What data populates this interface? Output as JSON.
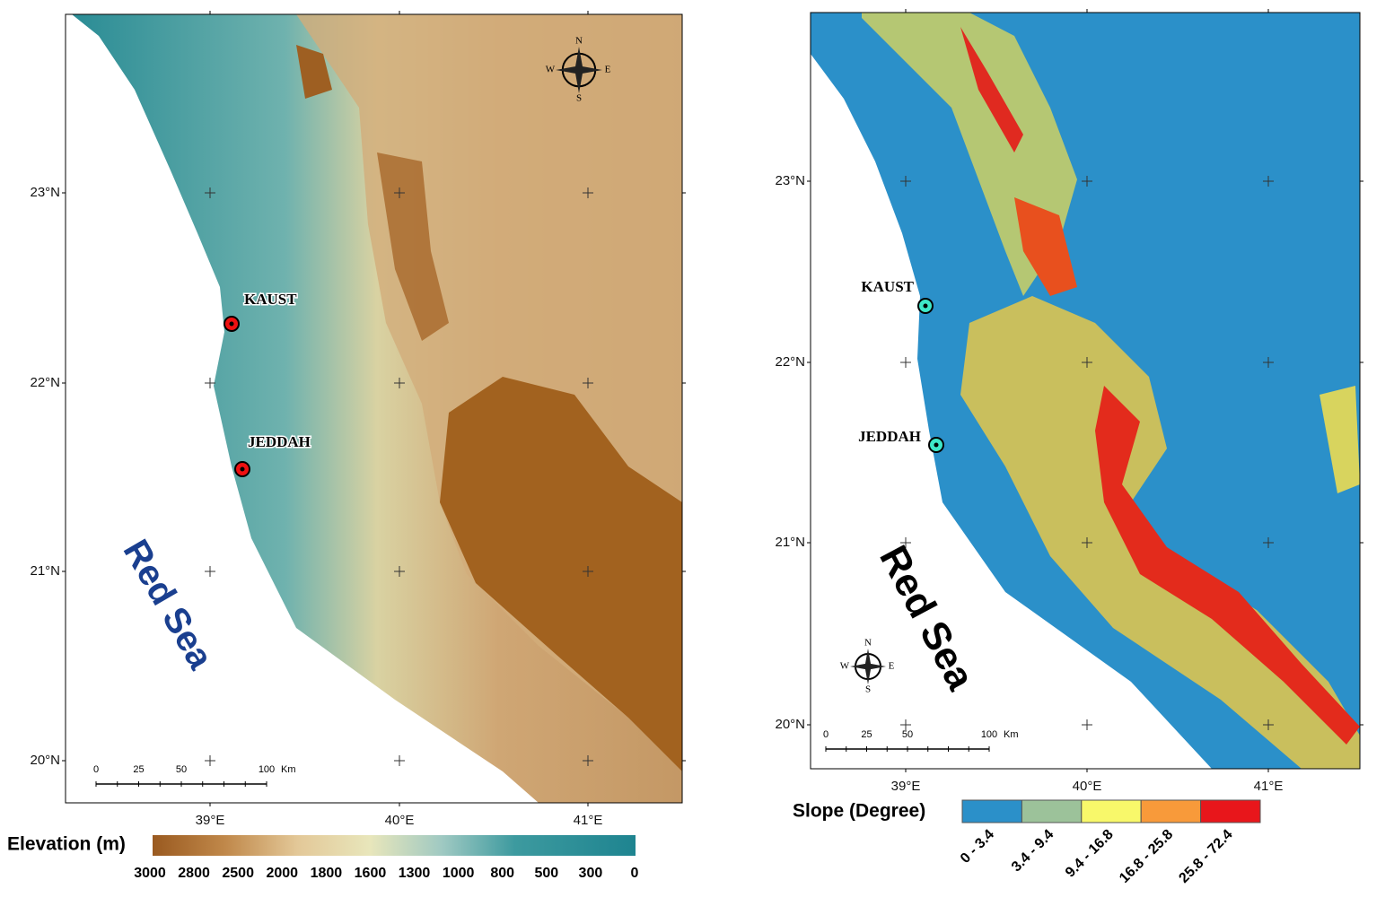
{
  "left_map": {
    "lat_labels": [
      "23°N",
      "22°N",
      "21°N",
      "20°N"
    ],
    "lon_labels": [
      "39°E",
      "40°E",
      "41°E"
    ],
    "places": [
      "KAUST",
      "JEDDAH"
    ],
    "sea_label": "Red Sea",
    "compass": [
      "N",
      "S",
      "W",
      "E"
    ],
    "scale_bar": {
      "ticks": [
        "0",
        "25",
        "50",
        "100"
      ],
      "unit": "Km"
    },
    "legend": {
      "title": "Elevation (m)",
      "ticks": [
        "3000",
        "2800",
        "2500",
        "2000",
        "1800",
        "1600",
        "1300",
        "1000",
        "800",
        "500",
        "300",
        "0"
      ]
    }
  },
  "right_map": {
    "lat_labels": [
      "23°N",
      "22°N",
      "21°N",
      "20°N"
    ],
    "lon_labels": [
      "39°E",
      "40°E",
      "41°E"
    ],
    "places": [
      "KAUST",
      "JEDDAH"
    ],
    "sea_label": "Red Sea",
    "compass": [
      "N",
      "S",
      "W",
      "E"
    ],
    "scale_bar": {
      "ticks": [
        "0",
        "25",
        "50",
        "100"
      ],
      "unit": "Km"
    },
    "legend": {
      "title": "Slope (Degree)",
      "classes": [
        "0 - 3.4",
        "3.4 - 9.4",
        "9.4 - 16.8",
        "16.8 - 25.8",
        "25.8 - 72.4"
      ]
    }
  }
}
